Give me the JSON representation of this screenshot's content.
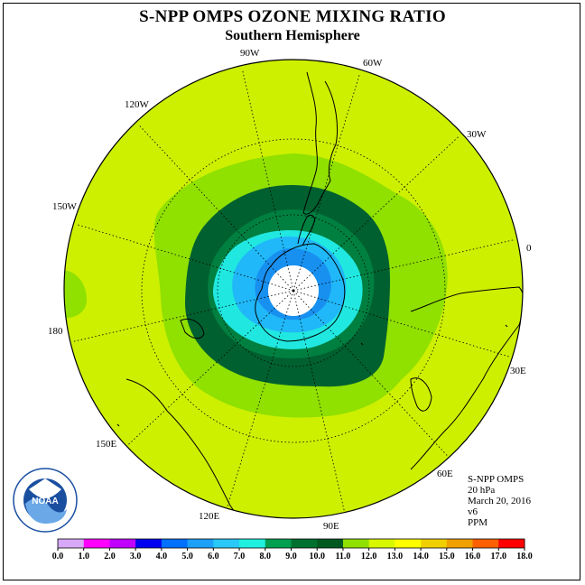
{
  "title": "S-NPP OMPS OZONE MIXING RATIO",
  "subtitle": "Southern Hemisphere",
  "longitude_labels": [
    "90W",
    "60W",
    "30W",
    "0",
    "30E",
    "60E",
    "90E",
    "120E",
    "150E",
    "180",
    "150W",
    "120W"
  ],
  "info": {
    "instrument": "S-NPP OMPS",
    "level": "20 hPa",
    "date": "March 20, 2016",
    "version": "v6",
    "units": "PPM"
  },
  "logo_text": "NOAA",
  "colorbar": {
    "ticks": [
      "0.0",
      "1.0",
      "2.0",
      "3.0",
      "4.0",
      "5.0",
      "6.0",
      "7.0",
      "8.0",
      "9.0",
      "10.0",
      "11.0",
      "12.0",
      "13.0",
      "14.0",
      "15.0",
      "16.0",
      "17.0",
      "18.0"
    ],
    "colors": [
      "#b688f0",
      "#d8a8f8",
      "#ff00ff",
      "#c000ff",
      "#0000f0",
      "#0070ff",
      "#1da0f8",
      "#28c8f8",
      "#20f0e0",
      "#00a050",
      "#007030",
      "#005a20",
      "#90e000",
      "#d8f800",
      "#ffff00",
      "#f0d000",
      "#f0a000",
      "#ff6000",
      "#ff0000",
      "#d00000",
      "#a06040"
    ]
  },
  "colors": {
    "background_field": "#ccf000",
    "contour_10": "#90e000",
    "contour_9": "#008040",
    "contour_8": "#006030",
    "contour_7": "#20e8e0",
    "contour_6": "#20b8f8",
    "contour_5": "#1890f0",
    "polar_mask": "#ffffff"
  }
}
